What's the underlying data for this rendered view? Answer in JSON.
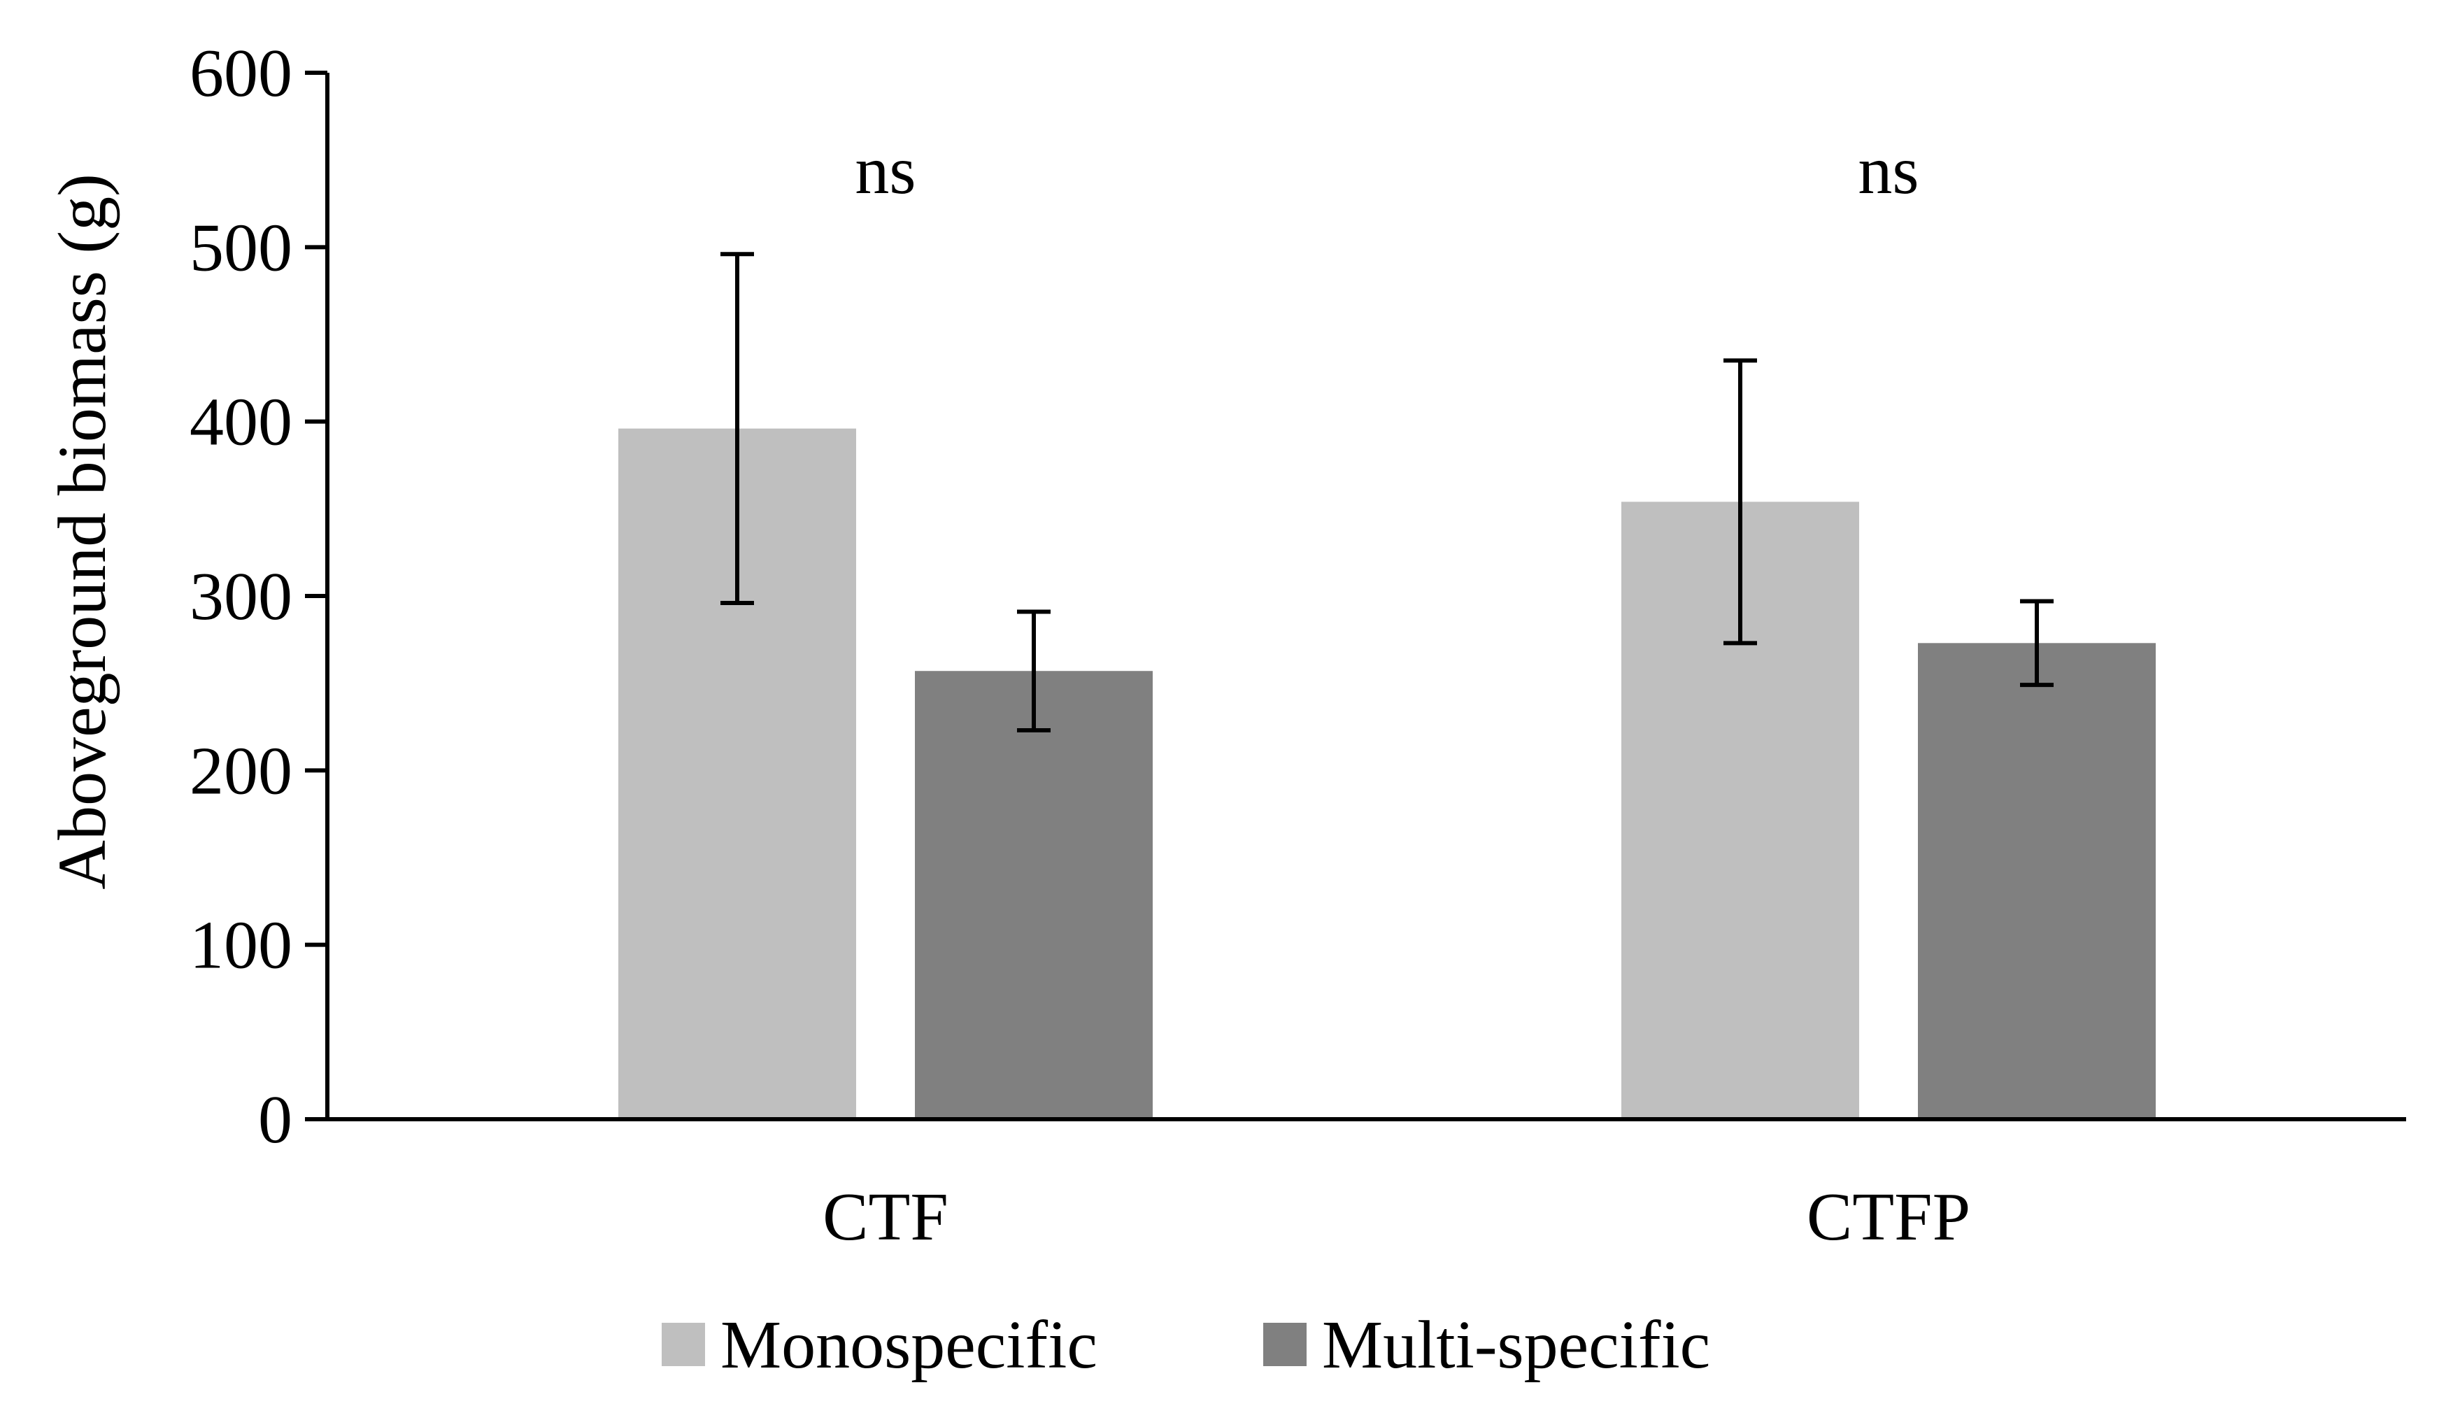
{
  "chart_data": {
    "type": "bar",
    "title": "",
    "xlabel": "",
    "ylabel": "Aboveground biomass (g)",
    "ylim": [
      0,
      600
    ],
    "yticks": [
      0,
      100,
      200,
      300,
      400,
      500,
      600
    ],
    "grid": false,
    "legend_position": "bottom-center",
    "categories": [
      "CTF",
      "CTFP"
    ],
    "series": [
      {
        "name": "Monospecific",
        "color": "#bfbfbf",
        "values": [
          396,
          354
        ],
        "errors": [
          100,
          81
        ]
      },
      {
        "name": "Multi-specific",
        "color": "#808080",
        "values": [
          257,
          273
        ],
        "errors": [
          34,
          24
        ]
      }
    ],
    "annotations": [
      "ns",
      "ns"
    ]
  }
}
